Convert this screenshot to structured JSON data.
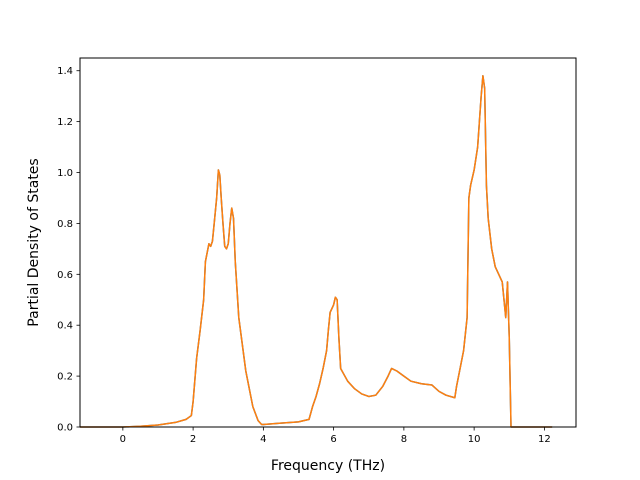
{
  "chart_data": {
    "type": "line",
    "title": "",
    "xlabel": "Frequency (THz)",
    "ylabel": "Partial Density of States",
    "xlim": [
      -1.22,
      12.9
    ],
    "ylim": [
      0.0,
      1.45
    ],
    "xticks": [
      0,
      2,
      4,
      6,
      8,
      10,
      12
    ],
    "xtick_labels": [
      "0",
      "2",
      "4",
      "6",
      "8",
      "10",
      "12"
    ],
    "yticks": [
      0.0,
      0.2,
      0.4,
      0.6,
      0.8,
      1.0,
      1.2,
      1.4
    ],
    "ytick_labels": [
      "0.0",
      "0.2",
      "0.4",
      "0.6",
      "0.8",
      "1.0",
      "1.2",
      "1.4"
    ],
    "grid": false,
    "legend": "none",
    "series": [
      {
        "color": "#1f77b4",
        "x": [
          -1.2,
          -0.5,
          0.0,
          0.5,
          1.0,
          1.5,
          1.8,
          1.95,
          2.0,
          2.1,
          2.2,
          2.3,
          2.35,
          2.45,
          2.5,
          2.55,
          2.6,
          2.67,
          2.72,
          2.76,
          2.8,
          2.85,
          2.9,
          2.95,
          3.0,
          3.05,
          3.1,
          3.15,
          3.2,
          3.3,
          3.5,
          3.7,
          3.85,
          3.95,
          4.0,
          4.5,
          5.0,
          5.3,
          5.4,
          5.5,
          5.6,
          5.7,
          5.8,
          5.85,
          5.9,
          6.0,
          6.05,
          6.1,
          6.15,
          6.2,
          6.4,
          6.6,
          6.8,
          7.0,
          7.2,
          7.4,
          7.55,
          7.65,
          7.8,
          8.0,
          8.2,
          8.5,
          8.8,
          9.0,
          9.2,
          9.45,
          9.5,
          9.6,
          9.7,
          9.8,
          9.85,
          9.9,
          10.0,
          10.1,
          10.15,
          10.2,
          10.25,
          10.3,
          10.35,
          10.4,
          10.5,
          10.6,
          10.7,
          10.8,
          10.9,
          10.95,
          11.0,
          11.05,
          11.1,
          11.2,
          11.5,
          12.0,
          12.2
        ],
        "y": [
          0.0,
          0.0,
          0.0,
          0.003,
          0.008,
          0.018,
          0.03,
          0.045,
          0.1,
          0.27,
          0.38,
          0.5,
          0.65,
          0.72,
          0.71,
          0.73,
          0.8,
          0.9,
          1.01,
          0.99,
          0.9,
          0.8,
          0.71,
          0.7,
          0.72,
          0.8,
          0.86,
          0.82,
          0.65,
          0.43,
          0.22,
          0.08,
          0.025,
          0.01,
          0.01,
          0.015,
          0.02,
          0.03,
          0.08,
          0.12,
          0.17,
          0.23,
          0.3,
          0.38,
          0.45,
          0.48,
          0.51,
          0.5,
          0.35,
          0.23,
          0.18,
          0.15,
          0.13,
          0.12,
          0.125,
          0.16,
          0.2,
          0.23,
          0.22,
          0.2,
          0.18,
          0.17,
          0.165,
          0.14,
          0.125,
          0.115,
          0.16,
          0.23,
          0.3,
          0.43,
          0.9,
          0.95,
          1.01,
          1.1,
          1.2,
          1.3,
          1.38,
          1.33,
          0.95,
          0.82,
          0.7,
          0.63,
          0.6,
          0.57,
          0.43,
          0.57,
          0.35,
          0.0,
          0.0,
          0.0,
          0.0,
          0.0,
          0.0
        ]
      },
      {
        "color": "#ff7f0e",
        "x": [
          -1.2,
          -0.5,
          0.0,
          0.5,
          1.0,
          1.5,
          1.8,
          1.95,
          2.0,
          2.1,
          2.2,
          2.3,
          2.35,
          2.45,
          2.5,
          2.55,
          2.6,
          2.67,
          2.72,
          2.76,
          2.8,
          2.85,
          2.9,
          2.95,
          3.0,
          3.05,
          3.1,
          3.15,
          3.2,
          3.3,
          3.5,
          3.7,
          3.85,
          3.95,
          4.0,
          4.5,
          5.0,
          5.3,
          5.4,
          5.5,
          5.6,
          5.7,
          5.8,
          5.85,
          5.9,
          6.0,
          6.05,
          6.1,
          6.15,
          6.2,
          6.4,
          6.6,
          6.8,
          7.0,
          7.2,
          7.4,
          7.55,
          7.65,
          7.8,
          8.0,
          8.2,
          8.5,
          8.8,
          9.0,
          9.2,
          9.45,
          9.5,
          9.6,
          9.7,
          9.8,
          9.85,
          9.9,
          10.0,
          10.1,
          10.15,
          10.2,
          10.25,
          10.3,
          10.35,
          10.4,
          10.5,
          10.6,
          10.7,
          10.8,
          10.9,
          10.95,
          11.0,
          11.05,
          11.1,
          11.2,
          11.5,
          12.0,
          12.2
        ],
        "y": [
          0.0,
          0.0,
          0.0,
          0.003,
          0.008,
          0.018,
          0.03,
          0.045,
          0.1,
          0.27,
          0.38,
          0.5,
          0.65,
          0.72,
          0.71,
          0.73,
          0.8,
          0.9,
          1.01,
          0.99,
          0.9,
          0.8,
          0.71,
          0.7,
          0.72,
          0.8,
          0.86,
          0.82,
          0.65,
          0.43,
          0.22,
          0.08,
          0.025,
          0.01,
          0.01,
          0.015,
          0.02,
          0.03,
          0.08,
          0.12,
          0.17,
          0.23,
          0.3,
          0.38,
          0.45,
          0.48,
          0.51,
          0.5,
          0.35,
          0.23,
          0.18,
          0.15,
          0.13,
          0.12,
          0.125,
          0.16,
          0.2,
          0.23,
          0.22,
          0.2,
          0.18,
          0.17,
          0.165,
          0.14,
          0.125,
          0.115,
          0.16,
          0.23,
          0.3,
          0.43,
          0.9,
          0.95,
          1.01,
          1.1,
          1.2,
          1.3,
          1.38,
          1.33,
          0.95,
          0.82,
          0.7,
          0.63,
          0.6,
          0.57,
          0.43,
          0.57,
          0.35,
          0.0,
          0.0,
          0.0,
          0.0,
          0.0,
          0.0
        ]
      }
    ]
  }
}
